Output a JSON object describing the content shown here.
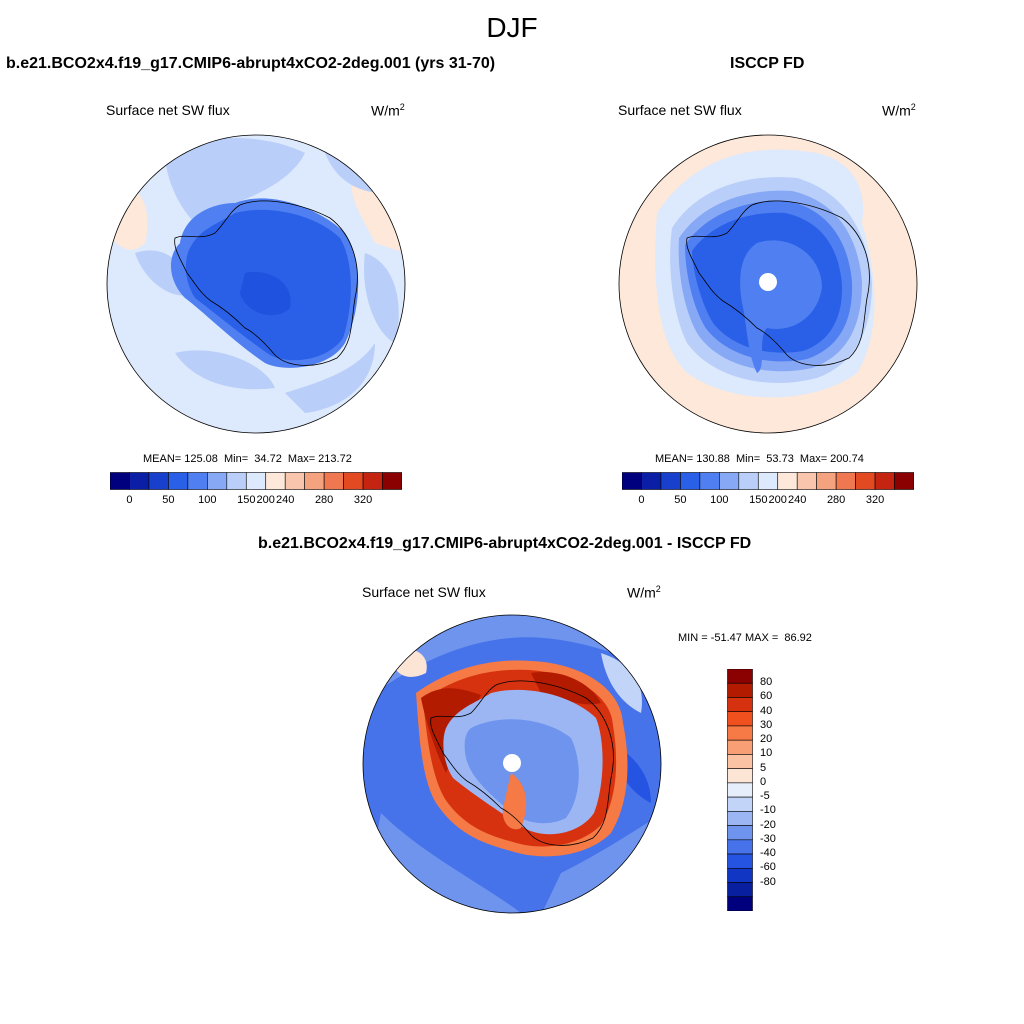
{
  "figure": {
    "title": "DJF",
    "panels": [
      {
        "title": "b.e21.BCO2x4.f19_g17.CMIP6-abrupt4xCO2-2deg.001 (yrs 31-70)",
        "variable": "Surface net SW flux",
        "units": "W/m",
        "units_sup": "2",
        "stats": "MEAN= 125.08  Min=  34.72  Max= 213.72"
      },
      {
        "title": "ISCCP FD",
        "variable": "Surface net SW flux",
        "units": "W/m",
        "units_sup": "2",
        "stats": "MEAN= 130.88  Min=  53.73  Max= 200.74"
      },
      {
        "title": "b.e21.BCO2x4.f19_g17.CMIP6-abrupt4xCO2-2deg.001 - ISCCP FD",
        "variable": "Surface net SW flux",
        "units": "W/m",
        "units_sup": "2",
        "stats": "MIN = -51.47 MAX =  86.92"
      }
    ]
  },
  "colorbar_abs": {
    "colors": [
      "#00007f",
      "#0a1fa6",
      "#1840cc",
      "#2a60e8",
      "#4f7ff0",
      "#87a8f5",
      "#b9cff9",
      "#dde9fc",
      "#fde8da",
      "#f9c6ad",
      "#f5a27f",
      "#f07850",
      "#e44a22",
      "#c42410",
      "#8b0000"
    ],
    "tick_labels": [
      "0",
      "50",
      "100",
      "150",
      "200",
      "240",
      "280",
      "320"
    ]
  },
  "colorbar_diff": {
    "colors_top_to_bottom": [
      "#8b0000",
      "#b21b00",
      "#d63210",
      "#f0501e",
      "#f57a45",
      "#f99f75",
      "#fbc3a3",
      "#fde5d6",
      "#e6eefc",
      "#c2d4f8",
      "#9bb6f3",
      "#6e94ee",
      "#4673ea",
      "#2554e2",
      "#1236c4",
      "#0820a0",
      "#00007f"
    ],
    "tick_labels": [
      "80",
      "60",
      "40",
      "30",
      "20",
      "10",
      "5",
      "0",
      "-5",
      "-10",
      "-20",
      "-30",
      "-40",
      "-60",
      "-80"
    ]
  }
}
